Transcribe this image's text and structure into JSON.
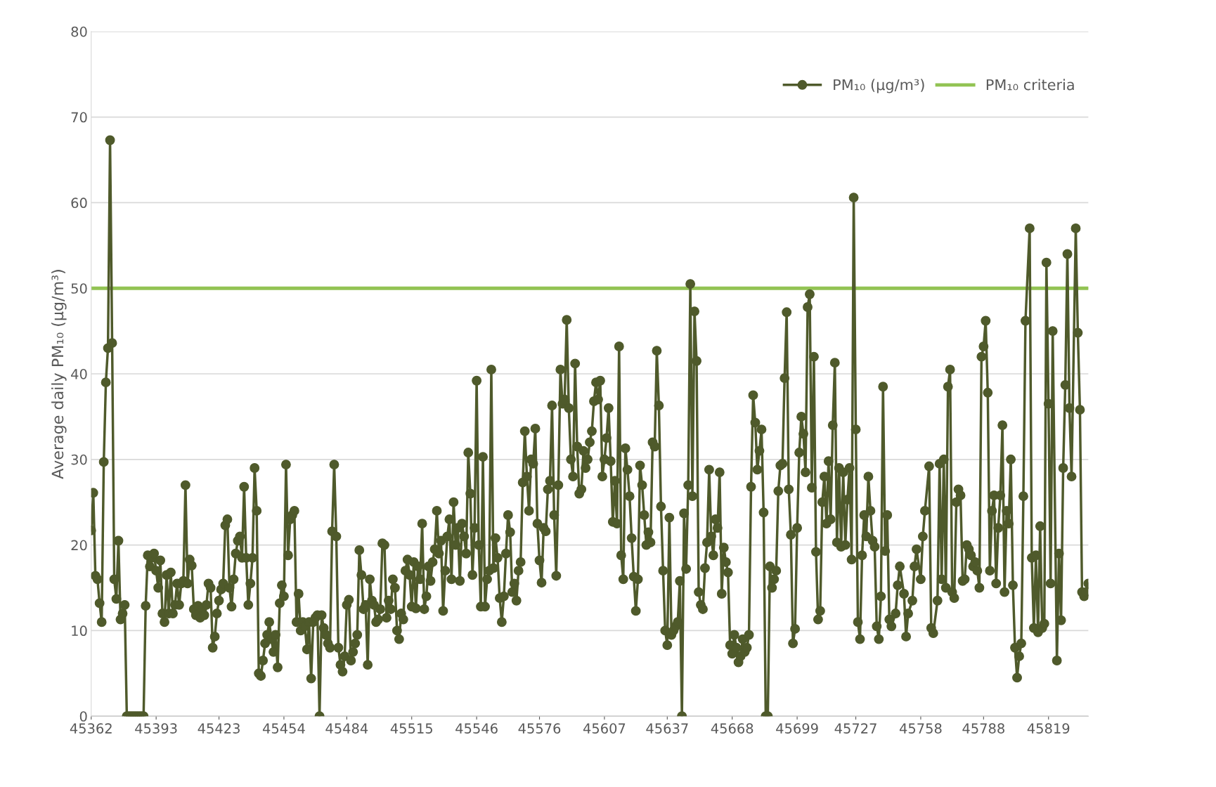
{
  "chart_data": {
    "type": "line",
    "ylabel": "Average daily PM₁₀ (µg/m³)",
    "xlim": [
      45362,
      45838
    ],
    "xticks": [
      45362,
      45393,
      45423,
      45454,
      45484,
      45515,
      45546,
      45576,
      45607,
      45637,
      45668,
      45699,
      45727,
      45758,
      45788,
      45819
    ],
    "ylim": [
      0,
      80
    ],
    "yticks": [
      0,
      10,
      20,
      30,
      40,
      50,
      60,
      70,
      80
    ],
    "grid": "y",
    "legend": "top right",
    "marker": "circle",
    "line_style": "solid",
    "ref_lines": [
      {
        "axis": "y",
        "value": 50,
        "label": "PM₁₀ criteria",
        "color": "#92c353",
        "line_style": "solid"
      }
    ],
    "series": [
      {
        "name": "PM₁₀ (µg/m³)",
        "color": "#4f5a2b",
        "x": [
          45362,
          45363,
          45364,
          45365,
          45366,
          45367,
          45368,
          45369,
          45370,
          45371,
          45372,
          45373,
          45374,
          45375,
          45376,
          45377,
          45378,
          45379,
          45380,
          45381,
          45382,
          45383,
          45384,
          45385,
          45386,
          45387,
          45388,
          45389,
          45390,
          45391,
          45392,
          45393,
          45394,
          45395,
          45396,
          45397,
          45398,
          45399,
          45400,
          45401,
          45402,
          45403,
          45404,
          45405,
          45406,
          45407,
          45408,
          45409,
          45410,
          45411,
          45412,
          45413,
          45414,
          45415,
          45416,
          45417,
          45418,
          45419,
          45420,
          45421,
          45422,
          45423,
          45424,
          45425,
          45426,
          45427,
          45428,
          45429,
          45430,
          45431,
          45432,
          45433,
          45434,
          45435,
          45436,
          45437,
          45438,
          45439,
          45440,
          45441,
          45442,
          45443,
          45444,
          45445,
          45446,
          45447,
          45448,
          45449,
          45450,
          45451,
          45452,
          45453,
          45454,
          45455,
          45456,
          45457,
          45458,
          45459,
          45460,
          45461,
          45462,
          45463,
          45464,
          45465,
          45466,
          45467,
          45468,
          45469,
          45470,
          45471,
          45472,
          45473,
          45474,
          45475,
          45476,
          45477,
          45478,
          45479,
          45480,
          45481,
          45482,
          45483,
          45484,
          45485,
          45486,
          45487,
          45488,
          45489,
          45490,
          45491,
          45492,
          45493,
          45494,
          45495,
          45496,
          45497,
          45498,
          45499,
          45500,
          45501,
          45502,
          45503,
          45504,
          45505,
          45506,
          45507,
          45508,
          45509,
          45510,
          45511,
          45512,
          45513,
          45514,
          45515,
          45516,
          45517,
          45518,
          45519,
          45520,
          45521,
          45522,
          45523,
          45524,
          45525,
          45526,
          45527,
          45528,
          45529,
          45530,
          45531,
          45532,
          45533,
          45534,
          45535,
          45536,
          45537,
          45538,
          45539,
          45540,
          45541,
          45542,
          45543,
          45544,
          45545,
          45546,
          45547,
          45548,
          45549,
          45550,
          45551,
          45552,
          45553,
          45554,
          45555,
          45556,
          45557,
          45558,
          45559,
          45560,
          45561,
          45562,
          45563,
          45564,
          45565,
          45566,
          45567,
          45568,
          45569,
          45570,
          45571,
          45572,
          45573,
          45574,
          45575,
          45576,
          45577,
          45578,
          45579,
          45580,
          45581,
          45582,
          45583,
          45584,
          45585,
          45586,
          45587,
          45588,
          45589,
          45590,
          45591,
          45592,
          45593,
          45594,
          45595,
          45596,
          45597,
          45598,
          45599,
          45600,
          45601,
          45602,
          45603,
          45604,
          45605,
          45606,
          45607,
          45608,
          45609,
          45610,
          45611,
          45612,
          45613,
          45614,
          45615,
          45616,
          45617,
          45618,
          45619,
          45620,
          45621,
          45622,
          45623,
          45624,
          45625,
          45626,
          45627,
          45628,
          45629,
          45630,
          45631,
          45632,
          45633,
          45634,
          45635,
          45636,
          45637,
          45638,
          45639,
          45640,
          45641,
          45642,
          45643,
          45644,
          45645,
          45646,
          45647,
          45648,
          45649,
          45650,
          45651,
          45652,
          45653,
          45654,
          45655,
          45656,
          45657,
          45658,
          45659,
          45660,
          45661,
          45662,
          45663,
          45664,
          45665,
          45666,
          45667,
          45668,
          45669,
          45670,
          45671,
          45672,
          45673,
          45674,
          45675,
          45676,
          45677,
          45678,
          45679,
          45680,
          45681,
          45682,
          45683,
          45684,
          45685,
          45686,
          45687,
          45688,
          45689,
          45690,
          45691,
          45692,
          45693,
          45694,
          45695,
          45696,
          45697,
          45698,
          45699,
          45700,
          45701,
          45702,
          45703,
          45704,
          45705,
          45706,
          45707,
          45708,
          45709,
          45710,
          45711,
          45712,
          45713,
          45714,
          45715,
          45716,
          45717,
          45718,
          45719,
          45720,
          45721,
          45722,
          45723,
          45724,
          45725,
          45726,
          45727,
          45728,
          45729,
          45730,
          45731,
          45732,
          45733,
          45734,
          45735,
          45736,
          45737,
          45738,
          45739,
          45740,
          45741,
          45742,
          45743,
          45744,
          45746,
          45747,
          45748,
          45750,
          45751,
          45752,
          45754,
          45755,
          45756,
          45758,
          45759,
          45760,
          45762,
          45763,
          45764,
          45766,
          45767,
          45768,
          45769,
          45770,
          45771,
          45772,
          45773,
          45774,
          45775,
          45776,
          45777,
          45778,
          45779,
          45780,
          45781,
          45782,
          45783,
          45784,
          45785,
          45786,
          45787,
          45788,
          45789,
          45790,
          45791,
          45792,
          45793,
          45794,
          45795,
          45796,
          45797,
          45798,
          45799,
          45800,
          45801,
          45802,
          45803,
          45804,
          45805,
          45806,
          45807,
          45808,
          45810,
          45811,
          45812,
          45813,
          45814,
          45815,
          45816,
          45817,
          45818,
          45819,
          45820,
          45821,
          45823,
          45824,
          45825,
          45826,
          45827,
          45828,
          45829,
          45830,
          45832,
          45833,
          45834,
          45835,
          45836,
          45837,
          45838
        ],
        "values": [
          21.7,
          26.1,
          16.4,
          16.0,
          13.2,
          11.0,
          29.7,
          39.0,
          43.0,
          67.3,
          43.6,
          16.0,
          13.7,
          20.5,
          11.3,
          12.0,
          13.0,
          0,
          0,
          0,
          0,
          0,
          0,
          0,
          0,
          0,
          12.9,
          18.8,
          17.5,
          18.5,
          19.0,
          17.0,
          15.0,
          18.2,
          12.0,
          11.0,
          16.5,
          12.0,
          16.8,
          12.0,
          13.0,
          15.5,
          13.0,
          15.5,
          15.8,
          27.0,
          15.5,
          18.3,
          17.6,
          12.5,
          11.8,
          12.9,
          11.5,
          12.5,
          11.8,
          13.0,
          15.5,
          15.0,
          8.0,
          9.3,
          12.0,
          13.5,
          14.8,
          15.5,
          22.3,
          23.0,
          15.0,
          12.8,
          16.0,
          19.0,
          20.5,
          21.0,
          18.5,
          26.8,
          18.5,
          13.0,
          15.5,
          18.5,
          29.0,
          24.0,
          5.0,
          4.7,
          6.5,
          8.5,
          9.5,
          11.0,
          9.0,
          7.5,
          9.5,
          5.7,
          13.2,
          15.3,
          14.0,
          29.4,
          18.8,
          23.0,
          23.5,
          24.0,
          11.0,
          14.3,
          10.0,
          11.0,
          10.5,
          7.8,
          11.0,
          4.4,
          11.0,
          11.5,
          11.8,
          0,
          11.8,
          10.3,
          9.5,
          8.5,
          8.0,
          21.6,
          29.4,
          21.0,
          8.0,
          6.0,
          5.2,
          7.0,
          13.0,
          13.6,
          6.5,
          7.5,
          8.5,
          9.5,
          19.4,
          16.5,
          12.5,
          13.0,
          6.0,
          16.0,
          13.5,
          13.0,
          11.0,
          11.3,
          12.5,
          20.2,
          20.0,
          11.5,
          13.5,
          12.5,
          16.0,
          15.0,
          10.0,
          9.0,
          12.0,
          11.3,
          17.0,
          18.3,
          16.5,
          12.8,
          18.0,
          12.6,
          17.5,
          16.0,
          22.5,
          12.5,
          14.0,
          17.5,
          15.8,
          18.0,
          19.5,
          24.0,
          19.0,
          20.5,
          12.3,
          17.0,
          21.0,
          23.0,
          16.0,
          25.0,
          20.0,
          22.0,
          15.8,
          22.5,
          21.0,
          19.0,
          30.8,
          26.0,
          16.5,
          22.0,
          39.2,
          20.0,
          12.8,
          30.3,
          12.8,
          16.0,
          17.0,
          40.5,
          17.3,
          20.8,
          18.5,
          13.8,
          11.0,
          14.0,
          19.0,
          23.5,
          21.5,
          14.5,
          15.5,
          13.5,
          17.0,
          18.0,
          27.3,
          33.3,
          28.0,
          24.0,
          30.0,
          29.5,
          33.6,
          22.5,
          18.2,
          15.6,
          22.0,
          21.6,
          26.5,
          27.5,
          36.3,
          23.5,
          16.4,
          27.0,
          40.5,
          36.5,
          37.0,
          46.3,
          36.0,
          30.0,
          28.0,
          41.2,
          31.5,
          26.0,
          26.5,
          31.0,
          29.0,
          30.0,
          32.0,
          33.3,
          36.8,
          39.0,
          37.0,
          39.2,
          28.0,
          30.0,
          32.5,
          36.0,
          29.8,
          22.7,
          27.5,
          22.5,
          43.2,
          18.8,
          16.0,
          31.3,
          28.8,
          25.7,
          20.8,
          16.3,
          12.3,
          16.0,
          29.3,
          27.0,
          23.5,
          20.0,
          21.5,
          20.3,
          32.0,
          31.5,
          42.7,
          36.3,
          24.5,
          17.0,
          10.0,
          8.3,
          23.2,
          9.5,
          10.0,
          10.5,
          11.0,
          15.8,
          0,
          23.7,
          17.2,
          27.0,
          50.5,
          25.7,
          47.3,
          41.5,
          14.5,
          13.0,
          12.5,
          17.3,
          20.3,
          28.8,
          21.0,
          18.8,
          23.0,
          22.0,
          28.5,
          14.3,
          19.7,
          18.0,
          16.8,
          8.3,
          7.3,
          9.5,
          8.0,
          6.3,
          7.0,
          9.0,
          7.5,
          8.0,
          9.5,
          26.8,
          37.5,
          34.3,
          28.8,
          31.0,
          33.5,
          23.8,
          0,
          0,
          17.5,
          15.0,
          16.0,
          17.0,
          26.3,
          29.3,
          29.5,
          39.5,
          47.2,
          26.5,
          21.2,
          8.5,
          10.2,
          22.0,
          30.8,
          35.0,
          33.0,
          28.5,
          47.8,
          49.3,
          26.7,
          42.0,
          19.2,
          11.3,
          12.3,
          25.0,
          28.0,
          22.5,
          29.8,
          23.0,
          34.0,
          41.3,
          20.3,
          29.0,
          19.8,
          28.5,
          20.0,
          25.3,
          29.0,
          18.3,
          60.6,
          33.5,
          11.0,
          9.0,
          18.8,
          23.5,
          21.0,
          28.0,
          24.0,
          20.5,
          19.8,
          10.5,
          9.0,
          14.0,
          38.5,
          19.3,
          23.5,
          11.3,
          10.5,
          12.0,
          15.3,
          17.5,
          14.3,
          9.3,
          12.0,
          13.5,
          17.5,
          19.5,
          16.0,
          21.0,
          24.0,
          29.2,
          10.3,
          9.7,
          13.5,
          29.5,
          16.0,
          30.0,
          15.0,
          38.5,
          40.5,
          14.5,
          13.8,
          25.0,
          26.5,
          25.8,
          15.8,
          16.0,
          20.0,
          19.5,
          18.8,
          17.5,
          18.0,
          17.0,
          15.0,
          42.0,
          43.2,
          46.2,
          37.8,
          17.0,
          24.0,
          25.8,
          15.5,
          22.0,
          25.8,
          34.0,
          14.5,
          24.0,
          22.5,
          30.0,
          15.3,
          8.0,
          4.5,
          7.0,
          8.5,
          25.7,
          46.2,
          57.0,
          18.5,
          10.3,
          18.8,
          9.8,
          22.2,
          10.3,
          10.8,
          53.0,
          36.5,
          15.5,
          45.0,
          6.5,
          19.0,
          11.2,
          29.0,
          38.7,
          54.0,
          36.0,
          28.0,
          57.0,
          44.8,
          35.8,
          14.5,
          14.0,
          14.5,
          15.5
        ]
      }
    ]
  }
}
